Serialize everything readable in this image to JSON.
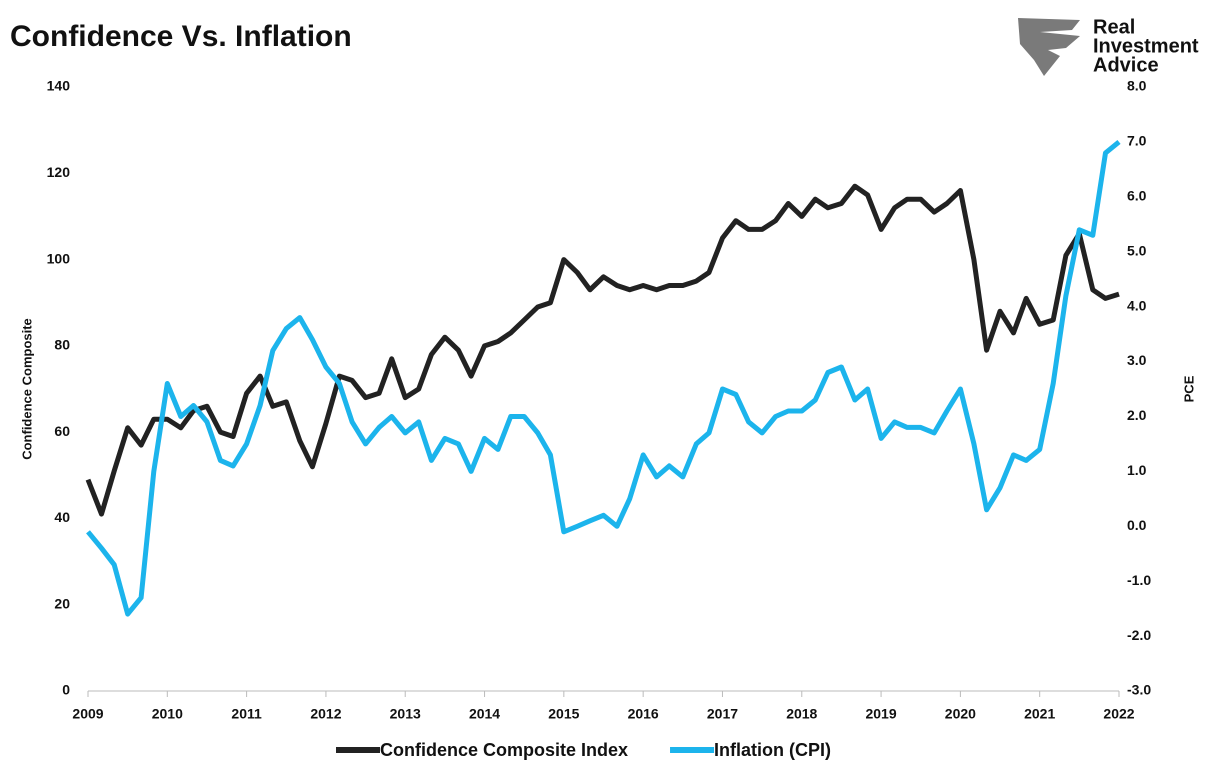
{
  "chart_data": {
    "type": "line",
    "title": "Confidence Vs. Inflation",
    "logo_text": [
      "Real",
      "Investment",
      "Advice"
    ],
    "y_label": "Confidence Composite",
    "y2_label": "PCE",
    "x": [
      2009.0,
      2009.17,
      2009.33,
      2009.5,
      2009.67,
      2009.83,
      2010.0,
      2010.17,
      2010.33,
      2010.5,
      2010.67,
      2010.83,
      2011.0,
      2011.17,
      2011.33,
      2011.5,
      2011.67,
      2011.83,
      2012.0,
      2012.17,
      2012.33,
      2012.5,
      2012.67,
      2012.83,
      2013.0,
      2013.17,
      2013.33,
      2013.5,
      2013.67,
      2013.83,
      2014.0,
      2014.17,
      2014.33,
      2014.5,
      2014.67,
      2014.83,
      2015.0,
      2015.17,
      2015.33,
      2015.5,
      2015.67,
      2015.83,
      2016.0,
      2016.17,
      2016.33,
      2016.5,
      2016.67,
      2016.83,
      2017.0,
      2017.17,
      2017.33,
      2017.5,
      2017.67,
      2017.83,
      2018.0,
      2018.17,
      2018.33,
      2018.5,
      2018.67,
      2018.83,
      2019.0,
      2019.17,
      2019.33,
      2019.5,
      2019.67,
      2019.83,
      2020.0,
      2020.17,
      2020.33,
      2020.5,
      2020.67,
      2020.83,
      2021.0,
      2021.17,
      2021.33,
      2021.5,
      2021.67,
      2021.83,
      2022.0
    ],
    "series": [
      {
        "name": "Confidence Composite Index",
        "color": "#222222",
        "values": [
          49,
          41,
          51,
          61,
          57,
          63,
          63,
          61,
          65,
          66,
          60,
          59,
          69,
          73,
          66,
          67,
          58,
          52,
          62,
          73,
          72,
          68,
          69,
          77,
          68,
          70,
          78,
          82,
          79,
          73,
          80,
          81,
          83,
          86,
          89,
          90,
          100,
          97,
          93,
          96,
          94,
          93,
          94,
          93,
          94,
          94,
          95,
          97,
          105,
          109,
          107,
          107,
          109,
          113,
          110,
          114,
          112,
          113,
          117,
          115,
          107,
          112,
          114,
          114,
          111,
          113,
          116,
          100,
          79,
          88,
          83,
          91,
          85,
          86,
          101,
          106,
          93,
          91,
          92
        ]
      },
      {
        "name": "Inflation (CPI)",
        "color": "#1cb4ec",
        "axis": "y2",
        "values": [
          -0.1,
          -0.4,
          -0.7,
          -1.6,
          -1.3,
          1.0,
          2.6,
          2.0,
          2.2,
          1.9,
          1.2,
          1.1,
          1.5,
          2.2,
          3.2,
          3.6,
          3.8,
          3.4,
          2.9,
          2.6,
          1.9,
          1.5,
          1.8,
          2.0,
          1.7,
          1.9,
          1.2,
          1.6,
          1.5,
          1.0,
          1.6,
          1.4,
          2.0,
          2.0,
          1.7,
          1.3,
          -0.1,
          0.0,
          0.1,
          0.2,
          0.0,
          0.5,
          1.3,
          0.9,
          1.1,
          0.9,
          1.5,
          1.7,
          2.5,
          2.4,
          1.9,
          1.7,
          2.0,
          2.1,
          2.1,
          2.3,
          2.8,
          2.9,
          2.3,
          2.5,
          1.6,
          1.9,
          1.8,
          1.8,
          1.7,
          2.1,
          2.5,
          1.5,
          0.3,
          0.7,
          1.3,
          1.2,
          1.4,
          2.6,
          4.2,
          5.4,
          5.3,
          6.8,
          7.0
        ]
      }
    ],
    "xlim": [
      2009,
      2022
    ],
    "xticks": [
      2009,
      2010,
      2011,
      2012,
      2013,
      2014,
      2015,
      2016,
      2017,
      2018,
      2019,
      2020,
      2021,
      2022
    ],
    "ylim": [
      0,
      140
    ],
    "yticks": [
      0,
      20,
      40,
      60,
      80,
      100,
      120,
      140
    ],
    "y2lim": [
      -3,
      8
    ],
    "y2ticks": [
      {
        "value": -3,
        "label": "-3.0"
      },
      {
        "value": -2,
        "label": "-2.0"
      },
      {
        "value": -1,
        "label": "-1.0"
      },
      {
        "value": 0,
        "label": "0.0"
      },
      {
        "value": 1,
        "label": "1.0"
      },
      {
        "value": 2,
        "label": "2.0"
      },
      {
        "value": 3,
        "label": "3.0"
      },
      {
        "value": 4,
        "label": "4.0"
      },
      {
        "value": 5,
        "label": "5.0"
      },
      {
        "value": 6,
        "label": "6.0"
      },
      {
        "value": 7,
        "label": "7.0"
      },
      {
        "value": 8,
        "label": "8.0"
      }
    ],
    "grid": false,
    "legend": "bottom"
  }
}
